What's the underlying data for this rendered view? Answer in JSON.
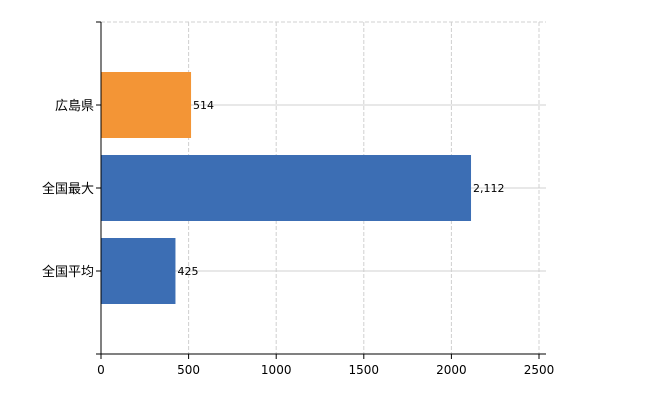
{
  "chart_data": {
    "type": "bar",
    "orientation": "horizontal",
    "categories": [
      "広島県",
      "全国最大",
      "全国平均"
    ],
    "values": [
      514,
      2112,
      425
    ],
    "data_labels": [
      "514",
      "2,112",
      "425"
    ],
    "bar_colors": [
      "#f39536",
      "#3c6eb4",
      "#3c6eb4"
    ],
    "xlim": [
      0,
      2500
    ],
    "xticks": [
      0,
      500,
      1000,
      1500,
      2000,
      2500
    ],
    "xtick_labels": [
      "0",
      "500",
      "1000",
      "1500",
      "2000",
      "2500"
    ],
    "grid": true,
    "title": "",
    "xlabel": "",
    "ylabel": ""
  }
}
